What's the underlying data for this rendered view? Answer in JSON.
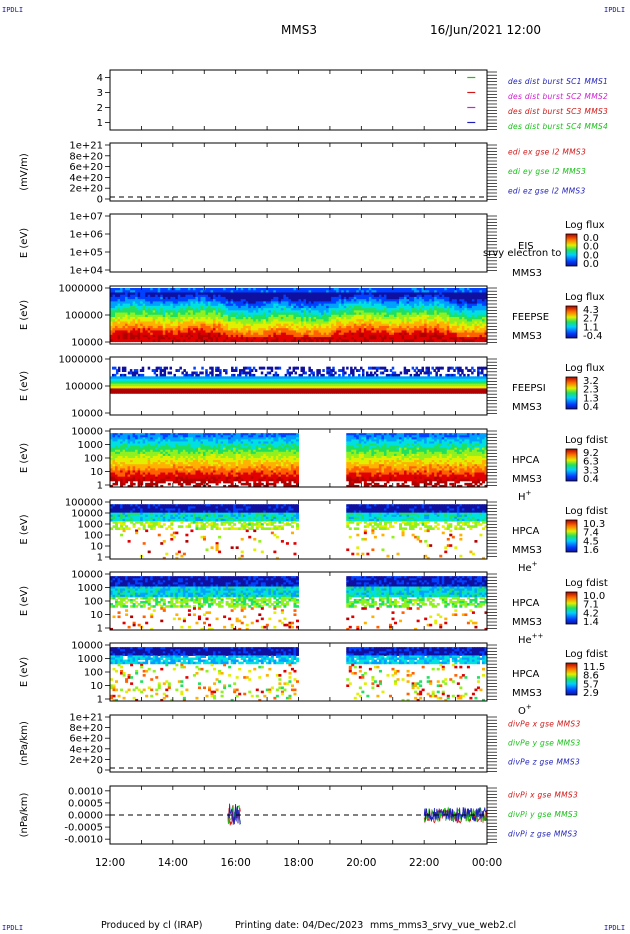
{
  "corner_label": "IPDLI",
  "header": {
    "spacecraft": "MMS3",
    "date_time": "16/Jun/2021 12:00"
  },
  "footer": {
    "produced_by": "Produced by cl (IRAP)",
    "printing_date": "Printing date: 04/Dec/2023",
    "filename": "mms_mms3_srvy_vue_web2.cl"
  },
  "colors": {
    "c1": "#1f1fb8",
    "c2": "#d020d0",
    "c3": "#d01818",
    "c4": "#18c018",
    "dash": "#000000"
  },
  "chart_data": [
    {
      "type": "line",
      "panel": "burst",
      "yticks": [
        "1",
        "2",
        "3",
        "4"
      ],
      "ylim": [
        0.5,
        4.5
      ],
      "series": [
        {
          "name": "des dist burst SC1 MMS1",
          "color": "#1f1fb8",
          "x": [
            "23:30"
          ],
          "values": [
            1
          ]
        },
        {
          "name": "des dist burst SC2 MMS2",
          "color": "#d020d0",
          "x": [
            "23:30"
          ],
          "values": [
            2
          ]
        },
        {
          "name": "des dist burst SC3 MMS3",
          "color": "#d01818",
          "x": [
            "23:30"
          ],
          "values": [
            3
          ]
        },
        {
          "name": "des dist burst SC4 MMS4",
          "color": "#18c018",
          "x": [
            "23:30"
          ],
          "values": [
            4
          ]
        }
      ]
    },
    {
      "type": "line",
      "panel": "edi",
      "ylabel": "(mV/m)",
      "yticks": [
        "0",
        "2e+20",
        "4e+20",
        "6e+20",
        "8e+20",
        "1e+21"
      ],
      "ylim": [
        0,
        1e+21
      ],
      "series": [
        {
          "name": "edi ex gse l2 MMS3",
          "color": "#d01818"
        },
        {
          "name": "edi ey gse l2 MMS3",
          "color": "#18c018"
        },
        {
          "name": "edi ez gse l2 MMS3",
          "color": "#1f1fb8"
        }
      ]
    },
    {
      "type": "heatmap",
      "panel": "eis",
      "ylabel": "E (eV)",
      "yticks": [
        "1e+04",
        "1e+05",
        "1e+06",
        "1e+07"
      ],
      "label": "EIS",
      "sublabel": "MMS3",
      "overlay_text": "srvy electron to",
      "colorbar_title": "Log flux",
      "colorbar_ticks": [
        "0.0",
        "0.0",
        "0.0",
        "0.0"
      ]
    },
    {
      "type": "heatmap",
      "panel": "feepse",
      "ylabel": "E (eV)",
      "yticks": [
        "10000",
        "100000",
        "1000000"
      ],
      "label": "FEEPSE",
      "sublabel": "MMS3",
      "colorbar_title": "Log flux",
      "colorbar_ticks": [
        "4.3",
        "2.7",
        "1.1",
        "-0.4"
      ]
    },
    {
      "type": "heatmap",
      "panel": "feepsi",
      "ylabel": "E (eV)",
      "yticks": [
        "10000",
        "100000",
        "1000000"
      ],
      "label": "FEEPSI",
      "sublabel": "MMS3",
      "colorbar_title": "Log flux",
      "colorbar_ticks": [
        "3.2",
        "2.3",
        "1.3",
        "0.4"
      ]
    },
    {
      "type": "heatmap",
      "panel": "hpca_h",
      "ylabel": "E (eV)",
      "yticks": [
        "1",
        "10",
        "100",
        "1000",
        "10000"
      ],
      "label": "HPCA",
      "sublabel": "MMS3",
      "species": "H",
      "charge": "+",
      "data_gap": [
        "18:00",
        "19:30"
      ],
      "colorbar_title": "Log fdist",
      "colorbar_ticks": [
        "9.2",
        "6.3",
        "3.3",
        "0.4"
      ]
    },
    {
      "type": "heatmap",
      "panel": "hpca_he1",
      "ylabel": "E (eV)",
      "yticks": [
        "1",
        "10",
        "100",
        "1000",
        "10000",
        "100000"
      ],
      "label": "HPCA",
      "sublabel": "MMS3",
      "species": "He",
      "charge": "+",
      "data_gap": [
        "18:00",
        "19:30"
      ],
      "colorbar_title": "Log fdist",
      "colorbar_ticks": [
        "10.3",
        "7.4",
        "4.5",
        "1.6"
      ]
    },
    {
      "type": "heatmap",
      "panel": "hpca_he2",
      "ylabel": "E (eV)",
      "yticks": [
        "1",
        "10",
        "100",
        "1000",
        "10000"
      ],
      "label": "HPCA",
      "sublabel": "MMS3",
      "species": "He",
      "charge": "++",
      "data_gap": [
        "18:00",
        "19:30"
      ],
      "colorbar_title": "Log fdist",
      "colorbar_ticks": [
        "10.0",
        "7.1",
        "4.2",
        "1.4"
      ]
    },
    {
      "type": "heatmap",
      "panel": "hpca_o",
      "ylabel": "E (eV)",
      "yticks": [
        "1",
        "10",
        "100",
        "1000",
        "10000"
      ],
      "label": "HPCA",
      "sublabel": "MMS3",
      "species": "O",
      "charge": "+",
      "data_gap": [
        "18:00",
        "19:30"
      ],
      "colorbar_title": "Log fdist",
      "colorbar_ticks": [
        "11.5",
        "8.6",
        "5.7",
        "2.9"
      ]
    },
    {
      "type": "line",
      "panel": "divpe",
      "ylabel": "(nPa/km)",
      "yticks": [
        "0",
        "2e+20",
        "4e+20",
        "6e+20",
        "8e+20",
        "1e+21"
      ],
      "ylim": [
        0,
        1e+21
      ],
      "series": [
        {
          "name": "divPe x gse MMS3",
          "color": "#d01818"
        },
        {
          "name": "divPe y gse MMS3",
          "color": "#18c018"
        },
        {
          "name": "divPe z gse MMS3",
          "color": "#1f1fb8"
        }
      ]
    },
    {
      "type": "line",
      "panel": "divpi",
      "ylabel": "(nPa/km)",
      "yticks": [
        "-0.0010",
        "-0.0005",
        "0.0000",
        "0.0005",
        "0.0010"
      ],
      "ylim": [
        -0.0012,
        0.0012
      ],
      "data_intervals": [
        [
          "15:45",
          "16:10"
        ],
        [
          "22:00",
          "00:00"
        ]
      ],
      "series": [
        {
          "name": "divPi x gse MMS3",
          "color": "#d01818"
        },
        {
          "name": "divPi y gse MMS3",
          "color": "#18c018"
        },
        {
          "name": "divPi z gse MMS3",
          "color": "#1f1fb8"
        }
      ]
    }
  ],
  "xaxis": {
    "ticks": [
      "12:00",
      "14:00",
      "16:00",
      "18:00",
      "20:00",
      "22:00",
      "00:00"
    ]
  }
}
